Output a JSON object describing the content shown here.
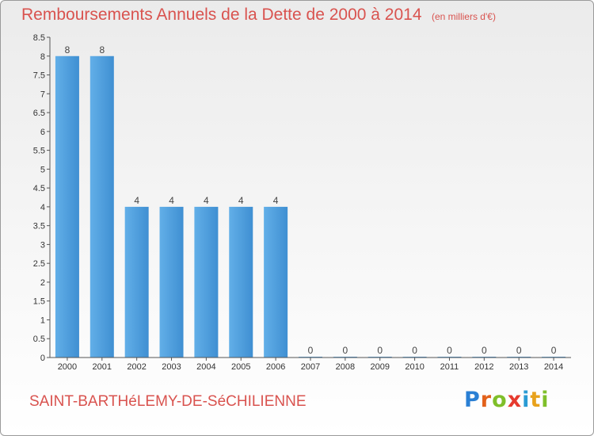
{
  "chart_data": {
    "type": "bar",
    "title": "Remboursements Annuels de la Dette de 2000 à 2014",
    "subtitle": "(en milliers d'€)",
    "categories": [
      "2000",
      "2001",
      "2002",
      "2003",
      "2004",
      "2005",
      "2006",
      "2007",
      "2008",
      "2009",
      "2010",
      "2011",
      "2012",
      "2013",
      "2014"
    ],
    "values": [
      8,
      8,
      4,
      4,
      4,
      4,
      4,
      0,
      0,
      0,
      0,
      0,
      0,
      0,
      0
    ],
    "y_ticks": [
      "0",
      "0.5",
      "1",
      "1.5",
      "2",
      "2.5",
      "3",
      "3.5",
      "4",
      "4.5",
      "5",
      "5.5",
      "6",
      "6.5",
      "7",
      "7.5",
      "8",
      "8.5"
    ],
    "ylim": [
      0,
      8.5
    ],
    "xlabel": "",
    "ylabel": "",
    "grid": false,
    "bar_color": "#3f8fd2",
    "bar_color_light": "#62afe8"
  },
  "footer": {
    "town": "SAINT-BARTHéLEMY-DE-SéCHILIENNE",
    "logo_letters": [
      "P",
      "r",
      "o",
      "x",
      "i",
      "t",
      "i"
    ],
    "logo_colors": [
      "#2a7fd4",
      "#e2611a",
      "#7fbf2a",
      "#e63a2e",
      "#2a9bd4",
      "#e8a21c",
      "#7fbf2a"
    ]
  }
}
